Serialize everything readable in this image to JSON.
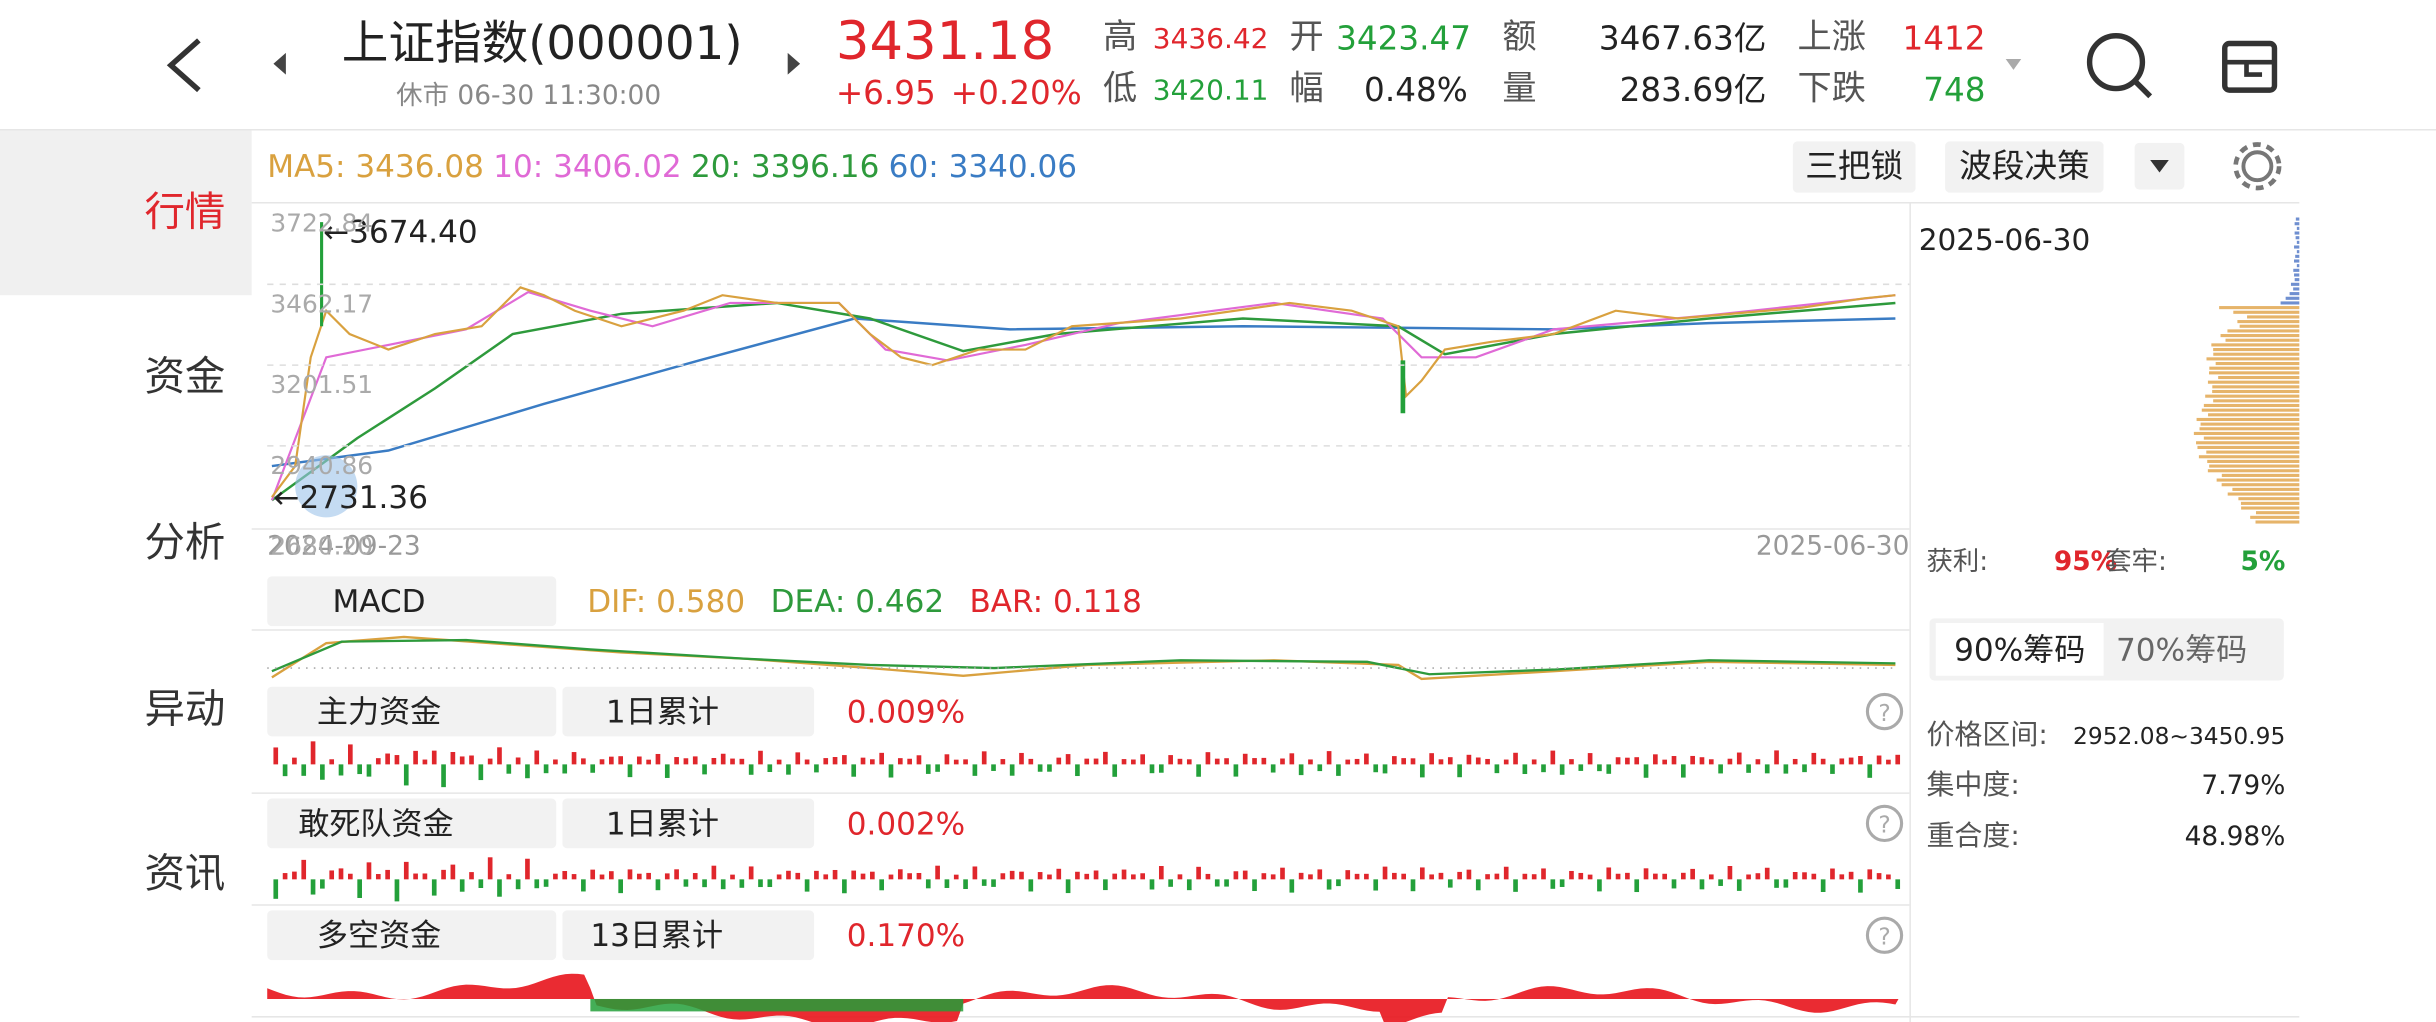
{
  "header": {
    "title": "上证指数(000001)",
    "status": "休市 06-30 11:30:00",
    "price": "3431.18",
    "change": "+6.95",
    "change_pct": "+0.20%",
    "stats": [
      {
        "label": "高",
        "value": "3436.42"
      },
      {
        "label": "低",
        "value": "3420.11"
      },
      {
        "label": "开",
        "value": "3423.47"
      },
      {
        "label": "幅",
        "value": "0.48%"
      },
      {
        "label": "额",
        "value": "3467.63亿"
      },
      {
        "label": "量",
        "value": "283.69亿"
      },
      {
        "label": "上涨",
        "value": "1412"
      },
      {
        "label": "下跌",
        "value": "748"
      }
    ]
  },
  "sidebar": [
    "行情",
    "资金",
    "分析",
    "异动",
    "资讯"
  ],
  "ma": [
    {
      "label": "MA5:",
      "value": "3436.08",
      "color": "#d9a13f"
    },
    {
      "label": "10:",
      "value": "3406.02",
      "color": "#e06ad6"
    },
    {
      "label": "20:",
      "value": "3396.16",
      "color": "#2e9a3c"
    },
    {
      "label": "60:",
      "value": "3340.06",
      "color": "#3a7cc4"
    }
  ],
  "toolbar": [
    "三把锁",
    "波段决策"
  ],
  "price_chart": {
    "yticks": [
      3722.84,
      3462.17,
      3201.51,
      2940.86,
      {
        "value": 2680.2,
        "label": "2680.20"
      }
    ],
    "high_label": "←3674.40",
    "low_label": "←2731.36",
    "start_date": "2024-09-23",
    "end_date": "2025-06-30"
  },
  "chips": {
    "date": "2025-06-30",
    "profit_label": "获利:",
    "profit": "95%",
    "trapped_label": "套牢:",
    "trapped": "5%",
    "tabs": [
      "90%筹码",
      "70%筹码"
    ],
    "rows": [
      {
        "label": "价格区间:",
        "value": "2952.08~3450.95"
      },
      {
        "label": "集中度:",
        "value": "7.79%"
      },
      {
        "label": "重合度:",
        "value": "48.98%"
      }
    ]
  },
  "macd": {
    "name": "MACD",
    "dif": "DIF: 0.580",
    "dea": "DEA: 0.462",
    "bar": "BAR: 0.118"
  },
  "funds": [
    {
      "name": "主力资金",
      "period": "1日累计",
      "value": "0.009%"
    },
    {
      "name": "敢死队资金",
      "period": "1日累计",
      "value": "0.002%"
    },
    {
      "name": "多空资金",
      "period": "13日累计",
      "value": "0.170%"
    }
  ]
}
